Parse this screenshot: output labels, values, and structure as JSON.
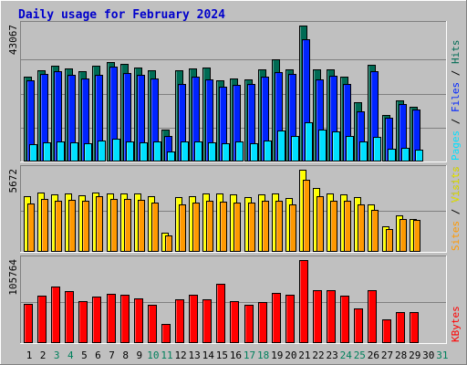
{
  "chart_data": {
    "type": "bar",
    "title": "Daily usage for February 2024",
    "x": [
      "1",
      "2",
      "3",
      "4",
      "5",
      "6",
      "7",
      "8",
      "9",
      "10",
      "11",
      "12",
      "13",
      "14",
      "15",
      "16",
      "17",
      "18",
      "19",
      "20",
      "21",
      "22",
      "23",
      "24",
      "25",
      "26",
      "27",
      "28",
      "29",
      "30",
      "31"
    ],
    "weekend_days": [
      3,
      4,
      10,
      11,
      17,
      18,
      24,
      25,
      31
    ],
    "colors": {
      "hits": "#006b54",
      "files": "#0024ff",
      "pages": "#00e0ff",
      "visits": "#ffff00",
      "sites": "#ff9900",
      "kbytes": "#ff0000",
      "panel_bg": "#c0c0c0",
      "title": "#0000cc",
      "weekday_label": "#000000",
      "weekend_label": "#00805c"
    },
    "panels": [
      {
        "id": "hits",
        "max_label": "43067",
        "ymax": 43067,
        "side_label": [
          {
            "text": "Pages",
            "color": "#00e0ff"
          },
          {
            "text": " / ",
            "color": "#000000"
          },
          {
            "text": "Files",
            "color": "#0024ff"
          },
          {
            "text": " / ",
            "color": "#000000"
          },
          {
            "text": "Hits",
            "color": "#006b54"
          }
        ],
        "series": [
          {
            "name": "Hits",
            "key": "hits",
            "values": [
              27000,
              28800,
              30300,
              29400,
              28500,
              30300,
              31500,
              30900,
              29700,
              28800,
              10000,
              28800,
              29400,
              29700,
              25800,
              26400,
              26100,
              29100,
              32400,
              29100,
              43067,
              29100,
              29100,
              27000,
              18900,
              30600,
              14700,
              19500,
              17400,
              null,
              null
            ]
          },
          {
            "name": "Files",
            "key": "files",
            "values": [
              25700,
              27800,
              28700,
              27500,
              26400,
              27600,
              30000,
              28000,
              27400,
              26400,
              8000,
              24700,
              26800,
              26000,
              23700,
              24300,
              24700,
              26900,
              28200,
              27800,
              38800,
              26000,
              27100,
              24500,
              16000,
              28600,
              14000,
              18300,
              16400,
              null,
              null
            ]
          },
          {
            "name": "Pages",
            "key": "pages",
            "values": [
              5400,
              6100,
              6300,
              6100,
              5800,
              6700,
              7200,
              6500,
              6200,
              6300,
              3300,
              6400,
              6300,
              6100,
              5800,
              6300,
              5900,
              6600,
              9700,
              8200,
              12400,
              10200,
              9400,
              8000,
              6300,
              7800,
              4000,
              4300,
              3700,
              null,
              null
            ]
          }
        ]
      },
      {
        "id": "visits",
        "max_label": "5672",
        "ymax": 5672,
        "side_label": [
          {
            "text": "Sites",
            "color": "#ff9900"
          },
          {
            "text": " / ",
            "color": "#000000"
          },
          {
            "text": "Visits",
            "color": "#ffff00"
          }
        ],
        "series": [
          {
            "name": "Visits",
            "key": "visits",
            "values": [
              3850,
              4100,
              4000,
              4050,
              3900,
              4100,
              4050,
              4050,
              4050,
              3850,
              1350,
              3750,
              3850,
              4050,
              4050,
              4000,
              3800,
              4000,
              4050,
              3700,
              5672,
              4400,
              4050,
              3950,
              3800,
              3300,
              1750,
              2500,
              2300,
              null,
              null
            ]
          },
          {
            "name": "Sites",
            "key": "sites",
            "values": [
              3350,
              3650,
              3550,
              3600,
              3500,
              3850,
              3650,
              3650,
              3600,
              3400,
              1150,
              3300,
              3400,
              3550,
              3450,
              3400,
              3400,
              3550,
              3500,
              3300,
              4950,
              3850,
              3550,
              3500,
              3300,
              2900,
              1550,
              2250,
              2200,
              null,
              null
            ]
          }
        ]
      },
      {
        "id": "kbytes",
        "max_label": "105764",
        "ymax": 105764,
        "side_label": [
          {
            "text": "KBytes",
            "color": "#ff0000"
          }
        ],
        "series": [
          {
            "name": "KBytes",
            "key": "kbytes",
            "values": [
              50000,
              61000,
              72000,
              66000,
              54000,
              59000,
              63000,
              62000,
              57000,
              49000,
              24000,
              56000,
              62000,
              56000,
              76000,
              53000,
              49000,
              52000,
              64000,
              62000,
              105764,
              67000,
              67000,
              60000,
              44000,
              67000,
              30000,
              39000,
              40000,
              null,
              null
            ]
          }
        ]
      }
    ]
  }
}
